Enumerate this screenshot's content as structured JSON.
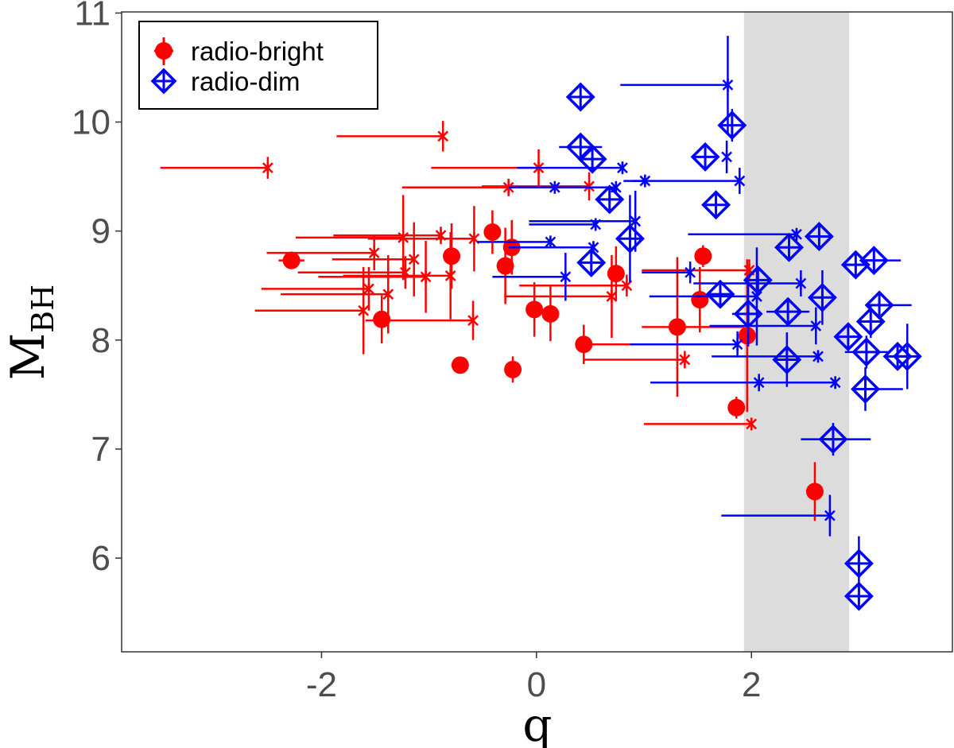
{
  "chart_data": {
    "type": "scatter",
    "title": "",
    "xlabel": "q",
    "ylabel": {
      "main": "M",
      "subscript": "BH"
    },
    "xlim": [
      -3.86,
      3.87
    ],
    "ylim": [
      5.14,
      11.01
    ],
    "xticks": [
      "-2",
      "0",
      "2"
    ],
    "xtick_values": [
      -2,
      0,
      2
    ],
    "yticks": [
      "6",
      "7",
      "8",
      "9",
      "10",
      "11"
    ],
    "ytick_values": [
      6,
      7,
      8,
      9,
      10,
      11
    ],
    "grid": false,
    "legend_position": "top-left",
    "shaded_band_q": [
      1.93,
      2.91
    ],
    "shaded_color": "#dcdcdc",
    "series": [
      {
        "name": "radio-bright",
        "color": "#ff0000",
        "legend_marker": "filled-circle",
        "points": [
          {
            "q": -2.28,
            "M": 8.73,
            "M_err": 0.08,
            "q_err_lo": 0.12,
            "q_err_hi": 0.12,
            "marker": "circle"
          },
          {
            "q": -1.44,
            "M": 8.19,
            "M_err": 0.22,
            "marker": "circle"
          },
          {
            "q": -0.79,
            "M": 8.77,
            "M_err": 0.3,
            "marker": "circle"
          },
          {
            "q": -0.71,
            "M": 7.77,
            "M_err": 0.05,
            "marker": "circle"
          },
          {
            "q": -0.41,
            "M": 8.99,
            "M_err": 0.2,
            "marker": "circle"
          },
          {
            "q": -0.23,
            "M": 8.85,
            "M_err": 0.25,
            "marker": "circle"
          },
          {
            "q": -0.29,
            "M": 8.68,
            "M_err": 0.35,
            "marker": "circle"
          },
          {
            "q": -0.22,
            "M": 7.73,
            "M_err": 0.12,
            "marker": "circle"
          },
          {
            "q": -0.02,
            "M": 8.28,
            "M_err": 0.25,
            "marker": "circle"
          },
          {
            "q": 0.13,
            "M": 8.24,
            "M_err": 0.25,
            "marker": "circle"
          },
          {
            "q": 0.44,
            "M": 7.96,
            "M_err": 0.18,
            "q_err_lo": 0.05,
            "q_err_hi": 0.85,
            "marker": "circle"
          },
          {
            "q": 0.74,
            "M": 8.61,
            "M_err": 0.25,
            "marker": "circle"
          },
          {
            "q": 1.31,
            "M": 8.12,
            "M_err": 0.64,
            "q_err_lo": 0.33,
            "q_err_hi": 0.62,
            "marker": "circle"
          },
          {
            "q": 1.55,
            "M": 8.77,
            "M_err": 0.1,
            "marker": "circle"
          },
          {
            "q": 1.52,
            "M": 8.37,
            "M_err": 0.3,
            "marker": "circle"
          },
          {
            "q": 1.96,
            "M": 8.04,
            "M_err": 0.7,
            "marker": "circle"
          },
          {
            "q": 1.86,
            "M": 7.38,
            "M_err": 0.1,
            "marker": "circle"
          },
          {
            "q": 2.59,
            "M": 6.61,
            "M_err": 0.27,
            "marker": "circle"
          },
          {
            "q": -2.5,
            "M": 9.58,
            "M_err": 0.1,
            "q_err_lo": 1.0,
            "marker": "asterisk"
          },
          {
            "q": -0.87,
            "M": 9.87,
            "M_err": 0.14,
            "q_err_lo": 0.99,
            "marker": "asterisk"
          },
          {
            "q": 0.02,
            "M": 9.58,
            "M_err": 0.17,
            "q_err_lo": 1.0,
            "marker": "asterisk"
          },
          {
            "q": -0.26,
            "M": 9.4,
            "M_err": 0.08,
            "q_err_lo": 0.99,
            "marker": "asterisk"
          },
          {
            "q": 0.49,
            "M": 9.41,
            "M_err": 0.13,
            "q_err_lo": 1.0,
            "marker": "asterisk"
          },
          {
            "q": -0.89,
            "M": 8.96,
            "M_err": 0.08,
            "q_err_lo": 1.0,
            "marker": "asterisk"
          },
          {
            "q": -1.24,
            "M": 8.94,
            "M_err": 0.39,
            "q_err_lo": 1.0,
            "marker": "asterisk"
          },
          {
            "q": -0.58,
            "M": 8.93,
            "M_err": 0.3,
            "q_err_lo": 0.99,
            "marker": "asterisk"
          },
          {
            "q": -1.51,
            "M": 8.8,
            "M_err": 0.16,
            "q_err_lo": 1.0,
            "marker": "asterisk"
          },
          {
            "q": -1.14,
            "M": 8.74,
            "M_err": 0.34,
            "q_err_lo": 0.76,
            "marker": "asterisk"
          },
          {
            "q": -1.22,
            "M": 8.62,
            "M_err": 0.15,
            "q_err_lo": 1.0,
            "marker": "asterisk"
          },
          {
            "q": -1.03,
            "M": 8.58,
            "M_err": 0.33,
            "q_err_lo": 1.0,
            "marker": "asterisk"
          },
          {
            "q": -0.8,
            "M": 8.59,
            "M_err": 0.4,
            "q_err_lo": 1.0,
            "marker": "asterisk"
          },
          {
            "q": -1.56,
            "M": 8.47,
            "M_err": 0.2,
            "q_err_lo": 1.0,
            "marker": "asterisk"
          },
          {
            "q": -1.38,
            "M": 8.42,
            "M_err": 0.36,
            "q_err_lo": 1.0,
            "marker": "asterisk"
          },
          {
            "q": -1.61,
            "M": 8.27,
            "M_err": 0.4,
            "q_err_lo": 1.01,
            "marker": "asterisk"
          },
          {
            "q": -0.59,
            "M": 8.18,
            "M_err": 0.18,
            "q_err_lo": 1.0,
            "marker": "asterisk"
          },
          {
            "q": 0.84,
            "M": 8.5,
            "M_err": 0.1,
            "q_err_lo": 1.0,
            "marker": "asterisk"
          },
          {
            "q": 0.7,
            "M": 8.4,
            "M_err": 0.38,
            "q_err_lo": 1.0,
            "marker": "asterisk"
          },
          {
            "q": 1.38,
            "M": 7.82,
            "M_err": 0.08,
            "q_err_lo": 0.94,
            "marker": "asterisk"
          },
          {
            "q": 1.98,
            "M": 8.64,
            "M_err": 0.1,
            "q_err_lo": 1.0,
            "marker": "asterisk"
          },
          {
            "q": 2.0,
            "M": 7.23,
            "M_err": 0.05,
            "q_err_lo": 1.0,
            "marker": "asterisk"
          }
        ]
      },
      {
        "name": "radio-dim",
        "color": "#0000ff",
        "legend_marker": "open-diamond-plus",
        "points": [
          {
            "q": 0.41,
            "M": 10.23,
            "M_err": 0.05,
            "marker": "diamond"
          },
          {
            "q": 0.41,
            "M": 9.77,
            "M_err": 0.05,
            "q_err_lo": 0.2,
            "q_err_hi": 0.2,
            "marker": "diamond"
          },
          {
            "q": 0.52,
            "M": 9.66,
            "M_err": 0.05,
            "marker": "diamond"
          },
          {
            "q": 1.82,
            "M": 9.97,
            "M_err": 0.15,
            "marker": "diamond"
          },
          {
            "q": 1.57,
            "M": 9.68,
            "M_err": 0.05,
            "marker": "diamond"
          },
          {
            "q": 0.68,
            "M": 9.29,
            "M_err": 0.1,
            "q_err_lo": 0.12,
            "q_err_hi": 0.12,
            "marker": "diamond"
          },
          {
            "q": 1.67,
            "M": 9.24,
            "M_err": 0.05,
            "marker": "diamond"
          },
          {
            "q": 0.87,
            "M": 8.93,
            "M_err": 0.4,
            "marker": "diamond"
          },
          {
            "q": 0.51,
            "M": 8.71,
            "M_err": 0.05,
            "q_err_lo": 0.1,
            "q_err_hi": 0.1,
            "marker": "diamond"
          },
          {
            "q": 1.71,
            "M": 8.42,
            "M_err": 0.05,
            "marker": "diamond"
          },
          {
            "q": 2.06,
            "M": 8.55,
            "M_err": 0.1,
            "marker": "diamond"
          },
          {
            "q": 1.97,
            "M": 8.24,
            "M_err": 0.3,
            "q_err_lo": 0.15,
            "q_err_hi": 0.05,
            "marker": "diamond"
          },
          {
            "q": 2.35,
            "M": 8.85,
            "M_err": 0.1,
            "marker": "diamond"
          },
          {
            "q": 2.63,
            "M": 8.95,
            "M_err": 0.05,
            "marker": "diamond"
          },
          {
            "q": 2.34,
            "M": 8.26,
            "M_err": 0.05,
            "q_err_lo": 0.2,
            "q_err_hi": 0.2,
            "marker": "diamond"
          },
          {
            "q": 2.66,
            "M": 8.39,
            "M_err": 0.25,
            "marker": "diamond"
          },
          {
            "q": 2.33,
            "M": 7.82,
            "M_err": 0.25,
            "q_err_lo": 0.1,
            "q_err_hi": 0.1,
            "marker": "diamond"
          },
          {
            "q": 2.76,
            "M": 7.09,
            "M_err": 0.15,
            "q_err_lo": 0.3,
            "q_err_hi": 0.35,
            "marker": "diamond"
          },
          {
            "q": 2.97,
            "M": 8.69,
            "M_err": 0.05,
            "q_err_lo": 0.1,
            "q_err_hi": 0.1,
            "marker": "diamond"
          },
          {
            "q": 3.14,
            "M": 8.73,
            "M_err": 0.05,
            "q_err_lo": 0.1,
            "q_err_hi": 0.25,
            "marker": "diamond"
          },
          {
            "q": 3.19,
            "M": 8.32,
            "M_err": 0.05,
            "q_err_lo": 0.1,
            "q_err_hi": 0.3,
            "marker": "diamond"
          },
          {
            "q": 3.11,
            "M": 8.17,
            "M_err": 0.15,
            "marker": "diamond"
          },
          {
            "q": 3.07,
            "M": 7.89,
            "M_err": 0.15,
            "q_err_lo": 0.2,
            "q_err_hi": 0.2,
            "marker": "diamond"
          },
          {
            "q": 2.9,
            "M": 8.03,
            "M_err": 0.05,
            "q_err_lo": 0.1,
            "q_err_hi": 0.1,
            "marker": "diamond"
          },
          {
            "q": 3.06,
            "M": 7.55,
            "M_err": 0.2,
            "q_err_lo": 0.1,
            "q_err_hi": 0.35,
            "marker": "diamond"
          },
          {
            "q": 3.36,
            "M": 7.85,
            "M_err": 0.05,
            "marker": "diamond"
          },
          {
            "q": 3.45,
            "M": 7.85,
            "M_err": 0.3,
            "marker": "diamond"
          },
          {
            "q": 3.0,
            "M": 5.95,
            "M_err": 0.25,
            "q_err_lo": 0.05,
            "q_err_hi": 0.1,
            "marker": "diamond"
          },
          {
            "q": 3.0,
            "M": 5.65,
            "M_err": 0.05,
            "marker": "diamond"
          },
          {
            "q": 1.78,
            "M": 10.34,
            "M_err": 0.45,
            "q_err_lo": 1.0,
            "marker": "asterisk"
          },
          {
            "q": 1.77,
            "M": 9.68,
            "M_err": 0.15,
            "marker": "asterisk"
          },
          {
            "q": 1.89,
            "M": 9.46,
            "M_err": 0.12,
            "q_err_lo": 1.0,
            "marker": "asterisk"
          },
          {
            "q": 0.8,
            "M": 9.58,
            "M_err": 0.05,
            "q_err_lo": 0.98,
            "marker": "asterisk"
          },
          {
            "q": 1.01,
            "M": 9.46,
            "M_err": 0.05,
            "q_err_lo": 0.2,
            "marker": "asterisk"
          },
          {
            "q": 0.74,
            "M": 9.4,
            "M_err": 0.05,
            "q_err_lo": 1.0,
            "marker": "asterisk"
          },
          {
            "q": 0.17,
            "M": 9.4,
            "M_err": 0.03,
            "q_err_lo": 0.3,
            "marker": "asterisk"
          },
          {
            "q": 0.92,
            "M": 9.09,
            "M_err": 0.28,
            "q_err_lo": 0.99,
            "marker": "asterisk"
          },
          {
            "q": 0.55,
            "M": 9.06,
            "M_err": 0.05,
            "q_err_lo": 0.62,
            "marker": "asterisk"
          },
          {
            "q": 0.53,
            "M": 8.85,
            "M_err": 0.05,
            "q_err_lo": 0.79,
            "marker": "asterisk"
          },
          {
            "q": 0.13,
            "M": 8.9,
            "M_err": 0.05,
            "q_err_lo": 0.68,
            "marker": "asterisk"
          },
          {
            "q": 0.27,
            "M": 8.58,
            "M_err": 0.22,
            "q_err_lo": 0.68,
            "marker": "asterisk"
          },
          {
            "q": 1.43,
            "M": 8.62,
            "M_err": 0.1,
            "q_err_lo": 0.45,
            "marker": "asterisk"
          },
          {
            "q": 2.42,
            "M": 8.97,
            "M_err": 0.05,
            "q_err_lo": 1.01,
            "marker": "asterisk"
          },
          {
            "q": 2.46,
            "M": 8.52,
            "M_err": 0.12,
            "q_err_lo": 1.0,
            "marker": "asterisk"
          },
          {
            "q": 2.05,
            "M": 8.4,
            "M_err": 0.45,
            "q_err_lo": 1.0,
            "marker": "asterisk"
          },
          {
            "q": 2.6,
            "M": 8.13,
            "M_err": 0.17,
            "q_err_lo": 0.99,
            "marker": "asterisk"
          },
          {
            "q": 2.62,
            "M": 7.85,
            "M_err": 0.05,
            "q_err_lo": 0.99,
            "marker": "asterisk"
          },
          {
            "q": 1.87,
            "M": 7.96,
            "M_err": 0.12,
            "q_err_lo": 1.0,
            "marker": "asterisk"
          },
          {
            "q": 2.07,
            "M": 7.61,
            "M_err": 0.08,
            "q_err_lo": 1.01,
            "marker": "asterisk"
          },
          {
            "q": 2.78,
            "M": 7.61,
            "M_err": 0.05,
            "q_err_lo": 0.86,
            "marker": "asterisk"
          },
          {
            "q": 2.73,
            "M": 6.39,
            "M_err": 0.19,
            "q_err_lo": 1.01,
            "marker": "asterisk"
          }
        ]
      }
    ]
  }
}
